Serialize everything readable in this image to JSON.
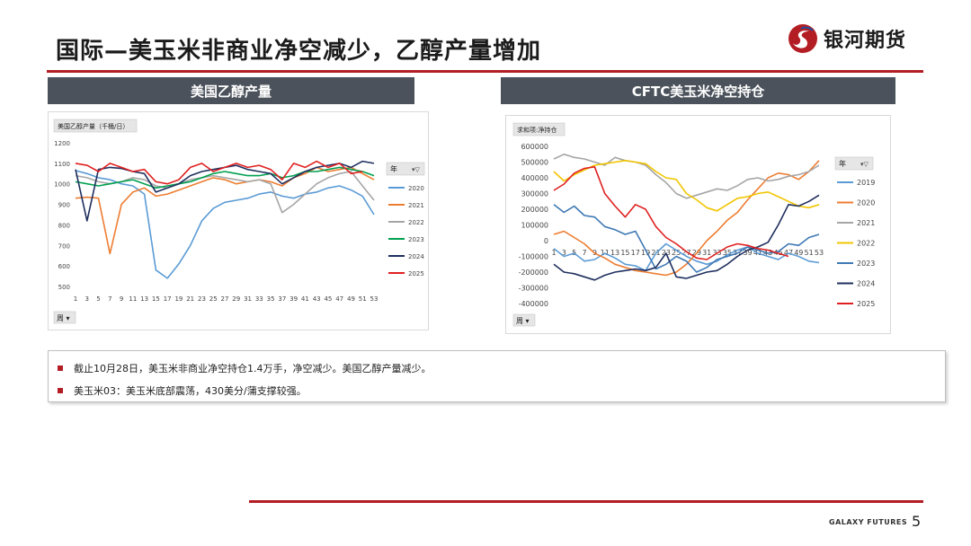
{
  "page": {
    "title": "国际—美玉米非商业净空减少，乙醇产量增加",
    "logo_text": "银河期货",
    "footer_brand": "GALAXY FUTURES",
    "page_number": "5",
    "accent_color": "#b31d24",
    "header_bar_color": "#4b525b"
  },
  "panels": [
    {
      "title": "美国乙醇产量"
    },
    {
      "title": "CFTC美玉米净空持仓"
    }
  ],
  "notes": [
    "截止10月28日，美玉米非商业净空持仓1.4万手，净空减少。美国乙醇产量减少。",
    "美玉米03：美玉米底部震荡，430美分/蒲支撑较强。"
  ],
  "chart_data": [
    {
      "type": "line",
      "title": "美国乙醇产量（千桶/日）",
      "filter_field": "周",
      "legend_title": "年",
      "legend_position": "right",
      "grid": false,
      "ylim": [
        500,
        1200
      ],
      "yticks": [
        500,
        600,
        700,
        800,
        900,
        1000,
        1100,
        1200
      ],
      "x": [
        1,
        3,
        5,
        7,
        9,
        11,
        13,
        15,
        17,
        19,
        21,
        23,
        25,
        27,
        29,
        31,
        33,
        35,
        37,
        39,
        41,
        43,
        45,
        47,
        49,
        51,
        53
      ],
      "series": [
        {
          "name": "2020",
          "color": "#5b9bd5",
          "values": [
            1065,
            1050,
            1030,
            1020,
            1000,
            990,
            950,
            580,
            540,
            610,
            700,
            820,
            880,
            910,
            920,
            930,
            950,
            960,
            940,
            930,
            950,
            960,
            980,
            990,
            970,
            940,
            850
          ]
        },
        {
          "name": "2021",
          "color": "#ed7d31",
          "values": [
            930,
            935,
            930,
            660,
            900,
            960,
            980,
            940,
            950,
            970,
            990,
            1010,
            1030,
            1020,
            1000,
            1010,
            1020,
            1010,
            990,
            1030,
            1050,
            1080,
            1060,
            1070,
            1080,
            1050,
            1020
          ]
        },
        {
          "name": "2022",
          "color": "#a5a5a5",
          "values": [
            1040,
            1030,
            1010,
            1000,
            1010,
            1030,
            1020,
            990,
            980,
            1000,
            1020,
            1030,
            1040,
            1030,
            1020,
            1010,
            1020,
            1000,
            860,
            900,
            950,
            1000,
            1030,
            1050,
            1060,
            990,
            920
          ]
        },
        {
          "name": "2023",
          "color": "#00a050",
          "values": [
            1010,
            1000,
            990,
            1000,
            1010,
            1020,
            1000,
            980,
            990,
            1000,
            1010,
            1030,
            1050,
            1060,
            1050,
            1040,
            1040,
            1050,
            1030,
            1040,
            1060,
            1060,
            1070,
            1080,
            1070,
            1060,
            1040
          ]
        },
        {
          "name": "2024",
          "color": "#1f2f5e",
          "values": [
            1070,
            820,
            1070,
            1080,
            1075,
            1060,
            1050,
            960,
            980,
            1000,
            1040,
            1060,
            1070,
            1080,
            1090,
            1070,
            1060,
            1050,
            1000,
            1030,
            1060,
            1080,
            1090,
            1100,
            1080,
            1110,
            1100
          ]
        },
        {
          "name": "2025",
          "color": "#e02020",
          "values": [
            1100,
            1090,
            1060,
            1100,
            1080,
            1060,
            1070,
            1010,
            1000,
            1020,
            1080,
            1100,
            1060,
            1080,
            1100,
            1080,
            1090,
            1070,
            1020,
            1100,
            1080,
            1110,
            1080,
            1100,
            1050,
            1060,
            null
          ]
        }
      ]
    },
    {
      "type": "line",
      "title": "求和项:净持仓",
      "filter_field": "周",
      "legend_title": "年",
      "legend_position": "right",
      "grid": false,
      "ylim": [
        -400000,
        600000
      ],
      "yticks": [
        -400000,
        -300000,
        -200000,
        -100000,
        0,
        100000,
        200000,
        300000,
        400000,
        500000,
        600000
      ],
      "x": [
        1,
        3,
        5,
        7,
        9,
        11,
        13,
        15,
        17,
        19,
        21,
        23,
        25,
        27,
        29,
        31,
        33,
        35,
        37,
        39,
        41,
        43,
        45,
        47,
        49,
        51,
        53
      ],
      "series": [
        {
          "name": "2019",
          "color": "#5b9bd5",
          "values": [
            -50000,
            -100000,
            -80000,
            -130000,
            -120000,
            -80000,
            -110000,
            -150000,
            -160000,
            -190000,
            -80000,
            -20000,
            -60000,
            -100000,
            -130000,
            -150000,
            -130000,
            -90000,
            -60000,
            -40000,
            -80000,
            -100000,
            -120000,
            -80000,
            -100000,
            -130000,
            -140000
          ]
        },
        {
          "name": "2020",
          "color": "#ed7d31",
          "values": [
            40000,
            60000,
            20000,
            -20000,
            -80000,
            -110000,
            -150000,
            -170000,
            -190000,
            -200000,
            -210000,
            -220000,
            -200000,
            -150000,
            -80000,
            0,
            60000,
            130000,
            180000,
            260000,
            330000,
            400000,
            430000,
            420000,
            390000,
            440000,
            510000
          ]
        },
        {
          "name": "2021",
          "color": "#a5a5a5",
          "values": [
            520000,
            550000,
            530000,
            520000,
            500000,
            480000,
            530000,
            510000,
            500000,
            480000,
            420000,
            370000,
            300000,
            270000,
            290000,
            310000,
            330000,
            320000,
            350000,
            390000,
            400000,
            380000,
            390000,
            410000,
            420000,
            440000,
            480000
          ]
        },
        {
          "name": "2022",
          "color": "#f2c500",
          "values": [
            440000,
            380000,
            420000,
            450000,
            480000,
            490000,
            500000,
            510000,
            500000,
            490000,
            440000,
            400000,
            390000,
            300000,
            260000,
            210000,
            190000,
            230000,
            270000,
            280000,
            300000,
            310000,
            280000,
            250000,
            220000,
            210000,
            230000
          ]
        },
        {
          "name": "2023",
          "color": "#3e78b4",
          "values": [
            230000,
            180000,
            220000,
            160000,
            150000,
            90000,
            70000,
            40000,
            60000,
            -60000,
            -180000,
            -150000,
            -100000,
            -130000,
            -200000,
            -170000,
            -120000,
            -100000,
            -80000,
            -40000,
            -60000,
            -80000,
            -70000,
            -20000,
            -30000,
            20000,
            40000
          ]
        },
        {
          "name": "2024",
          "color": "#1f2f5e",
          "values": [
            -150000,
            -200000,
            -210000,
            -230000,
            -250000,
            -220000,
            -200000,
            -190000,
            -180000,
            -190000,
            -170000,
            -80000,
            -230000,
            -240000,
            -220000,
            -200000,
            -190000,
            -150000,
            -100000,
            -60000,
            -40000,
            -10000,
            100000,
            230000,
            220000,
            250000,
            290000
          ]
        },
        {
          "name": "2025",
          "color": "#e02020",
          "values": [
            320000,
            360000,
            430000,
            460000,
            470000,
            300000,
            220000,
            150000,
            230000,
            200000,
            90000,
            20000,
            -20000,
            -70000,
            -110000,
            -120000,
            -80000,
            -40000,
            -20000,
            -30000,
            -50000,
            -60000,
            -80000,
            -100000,
            null,
            null,
            null
          ]
        }
      ]
    }
  ]
}
